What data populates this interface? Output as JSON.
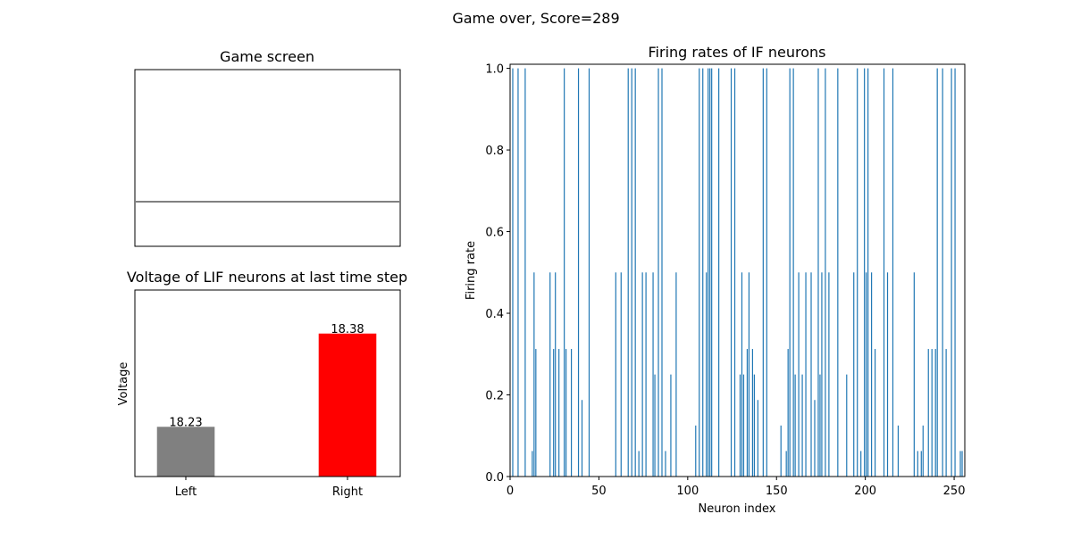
{
  "suptitle": "Game over, Score=289",
  "game_screen": {
    "title": "Game screen",
    "paddle_color": "#808080"
  },
  "chart_data": [
    {
      "type": "bar",
      "title": "Voltage of LIF neurons at last time step",
      "xlabel": "",
      "ylabel": "Voltage",
      "categories": [
        "Left",
        "Right"
      ],
      "values": [
        18.23,
        18.38
      ],
      "value_labels": [
        "18.23",
        "18.38"
      ],
      "colors": [
        "#808080",
        "#ff0000"
      ],
      "ylim": [
        18.15,
        18.45
      ],
      "y_ticks_visible": false,
      "grid": false
    },
    {
      "type": "bar",
      "title": "Firing rates of IF neurons",
      "xlabel": "Neuron index",
      "ylabel": "Firing rate",
      "xlim": [
        0,
        256
      ],
      "ylim": [
        0,
        1.01
      ],
      "x_ticks": [
        0,
        50,
        100,
        150,
        200,
        250
      ],
      "x_tick_labels": [
        "0",
        "50",
        "100",
        "150",
        "200",
        "250"
      ],
      "y_ticks": [
        0,
        0.2,
        0.4,
        0.6,
        0.8,
        1.0
      ],
      "y_tick_labels": [
        "0.0",
        "0.2",
        "0.4",
        "0.6",
        "0.8",
        "1.0"
      ],
      "color": "#1f77b4",
      "grid": false,
      "x": [
        1,
        4,
        8,
        12,
        13,
        14,
        22,
        24,
        25,
        27,
        30,
        31,
        34,
        38,
        40,
        44,
        59,
        62,
        66,
        68,
        70,
        72,
        74,
        76,
        80,
        81,
        83,
        85,
        87,
        90,
        93,
        104,
        106,
        108,
        110,
        111,
        112,
        113,
        117,
        124,
        126,
        129,
        130,
        131,
        133,
        134,
        136,
        137,
        139,
        142,
        144,
        152,
        155,
        156,
        157,
        159,
        160,
        162,
        164,
        166,
        169,
        171,
        173,
        174,
        175,
        177,
        179,
        184,
        189,
        193,
        195,
        197,
        199,
        200,
        201,
        203,
        205,
        210,
        212,
        215,
        218,
        227,
        229,
        231,
        232,
        235,
        237,
        239,
        240,
        243,
        245,
        248,
        250,
        253,
        254
      ],
      "values": [
        1.0,
        1.0,
        1.0,
        0.0625,
        0.5,
        0.3125,
        0.5,
        0.3125,
        0.5,
        0.3125,
        1.0,
        0.3125,
        0.3125,
        1.0,
        0.1875,
        1.0,
        0.5,
        0.5,
        1.0,
        1.0,
        1.0,
        0.0625,
        0.5,
        0.5,
        0.5,
        0.25,
        1.0,
        1.0,
        0.0625,
        0.25,
        0.5,
        0.125,
        1.0,
        1.0,
        0.5,
        1.0,
        1.0,
        1.0,
        1.0,
        1.0,
        1.0,
        0.25,
        0.5,
        0.25,
        0.3125,
        0.5,
        0.3125,
        0.25,
        0.1875,
        1.0,
        1.0,
        0.125,
        0.0625,
        0.3125,
        1.0,
        1.0,
        0.25,
        0.5,
        0.25,
        0.5,
        0.5,
        0.1875,
        1.0,
        0.25,
        0.5,
        1.0,
        0.5,
        1.0,
        0.25,
        0.5,
        1.0,
        0.0625,
        1.0,
        0.5,
        1.0,
        0.5,
        0.3125,
        1.0,
        0.5,
        1.0,
        0.125,
        0.5,
        0.0625,
        0.0625,
        0.125,
        0.3125,
        0.3125,
        0.3125,
        1.0,
        1.0,
        0.3125,
        1.0,
        1.0,
        0.0625,
        0.0625
      ]
    }
  ]
}
